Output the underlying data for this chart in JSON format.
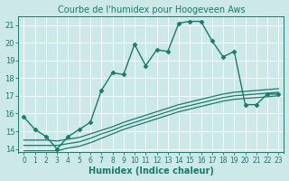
{
  "title": "Courbe de l'humidex pour Hoogeveen Aws",
  "xlabel": "Humidex (Indice chaleur)",
  "bg_color": "#cce8e8",
  "grid_color": "#ffffff",
  "line_color": "#1a7a6a",
  "xlim": [
    -0.5,
    23.5
  ],
  "ylim": [
    13.8,
    21.5
  ],
  "xticks": [
    0,
    1,
    2,
    3,
    4,
    5,
    6,
    7,
    8,
    9,
    10,
    11,
    12,
    13,
    14,
    15,
    16,
    17,
    18,
    19,
    20,
    21,
    22,
    23
  ],
  "yticks": [
    14,
    15,
    16,
    17,
    18,
    19,
    20,
    21
  ],
  "series": [
    {
      "x": [
        0,
        1,
        2,
        3,
        4,
        5,
        6,
        7,
        8,
        9,
        10,
        11,
        12,
        13,
        14,
        15,
        16,
        17,
        18,
        19,
        20,
        21,
        22,
        23
      ],
      "y": [
        15.8,
        15.1,
        14.7,
        14.0,
        14.7,
        15.1,
        15.5,
        17.3,
        18.3,
        18.2,
        19.9,
        18.7,
        19.6,
        19.5,
        21.1,
        21.2,
        21.2,
        20.1,
        19.2,
        19.5,
        16.5,
        16.5,
        17.1,
        17.1
      ],
      "marker": "D",
      "markersize": 2.5,
      "linewidth": 1.0,
      "linestyle": "-"
    },
    {
      "x": [
        0,
        1,
        2,
        3,
        4,
        5,
        6,
        7,
        8,
        9,
        10,
        11,
        12,
        13,
        14,
        15,
        16,
        17,
        18,
        19,
        20,
        21,
        22,
        23
      ],
      "y": [
        14.5,
        14.5,
        14.5,
        14.45,
        14.55,
        14.65,
        14.85,
        15.05,
        15.25,
        15.5,
        15.7,
        15.9,
        16.1,
        16.3,
        16.5,
        16.65,
        16.8,
        16.95,
        17.1,
        17.2,
        17.25,
        17.3,
        17.35,
        17.4
      ],
      "marker": null,
      "markersize": 0,
      "linewidth": 0.9,
      "linestyle": "-"
    },
    {
      "x": [
        0,
        1,
        2,
        3,
        4,
        5,
        6,
        7,
        8,
        9,
        10,
        11,
        12,
        13,
        14,
        15,
        16,
        17,
        18,
        19,
        20,
        21,
        22,
        23
      ],
      "y": [
        14.2,
        14.2,
        14.2,
        14.2,
        14.3,
        14.4,
        14.6,
        14.85,
        15.05,
        15.3,
        15.5,
        15.7,
        15.9,
        16.1,
        16.3,
        16.45,
        16.6,
        16.75,
        16.9,
        17.0,
        17.05,
        17.1,
        17.15,
        17.2
      ],
      "marker": null,
      "markersize": 0,
      "linewidth": 0.9,
      "linestyle": "-"
    },
    {
      "x": [
        0,
        1,
        2,
        3,
        4,
        5,
        6,
        7,
        8,
        9,
        10,
        11,
        12,
        13,
        14,
        15,
        16,
        17,
        18,
        19,
        20,
        21,
        22,
        23
      ],
      "y": [
        13.9,
        13.9,
        13.9,
        13.9,
        14.05,
        14.15,
        14.35,
        14.6,
        14.85,
        15.1,
        15.3,
        15.5,
        15.7,
        15.9,
        16.1,
        16.25,
        16.4,
        16.55,
        16.7,
        16.8,
        16.85,
        16.9,
        16.95,
        17.0
      ],
      "marker": null,
      "markersize": 0,
      "linewidth": 0.9,
      "linestyle": "-"
    }
  ],
  "title_fontsize": 7,
  "xlabel_fontsize": 7,
  "tick_fontsize": 5.5,
  "ytick_fontsize": 6
}
